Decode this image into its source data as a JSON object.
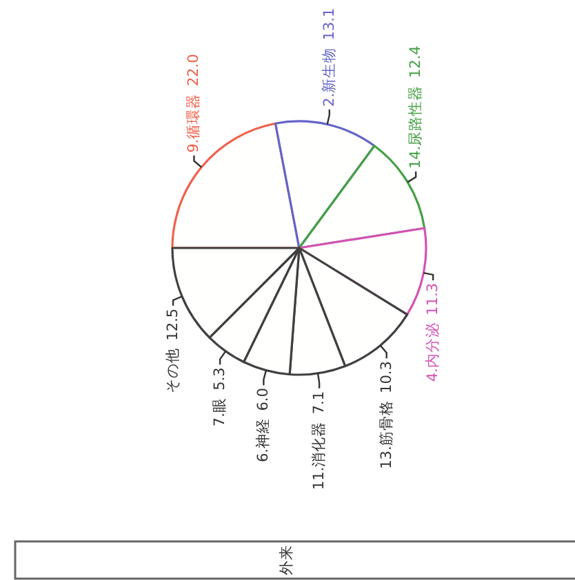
{
  "chart_data": {
    "type": "pie",
    "title": "外来",
    "categories": [
      "9.循環器",
      "2.新生物",
      "14.尿路性器",
      "4.内分泌",
      "13.筋骨格",
      "11.消化器",
      "6.神経",
      "7.眼",
      "その他"
    ],
    "values": [
      22.0,
      13.1,
      12.4,
      11.3,
      10.3,
      7.1,
      6.0,
      5.3,
      12.5
    ],
    "value_labels": [
      "22.0",
      "13.1",
      "12.4",
      "11.3",
      "10.3",
      "7.1",
      "6.0",
      "5.3",
      "12.5"
    ],
    "colors": [
      "#f0604a",
      "#6464c8",
      "#44a044",
      "#d452b4",
      "#404040",
      "#404040",
      "#404040",
      "#404040",
      "#404040"
    ]
  }
}
